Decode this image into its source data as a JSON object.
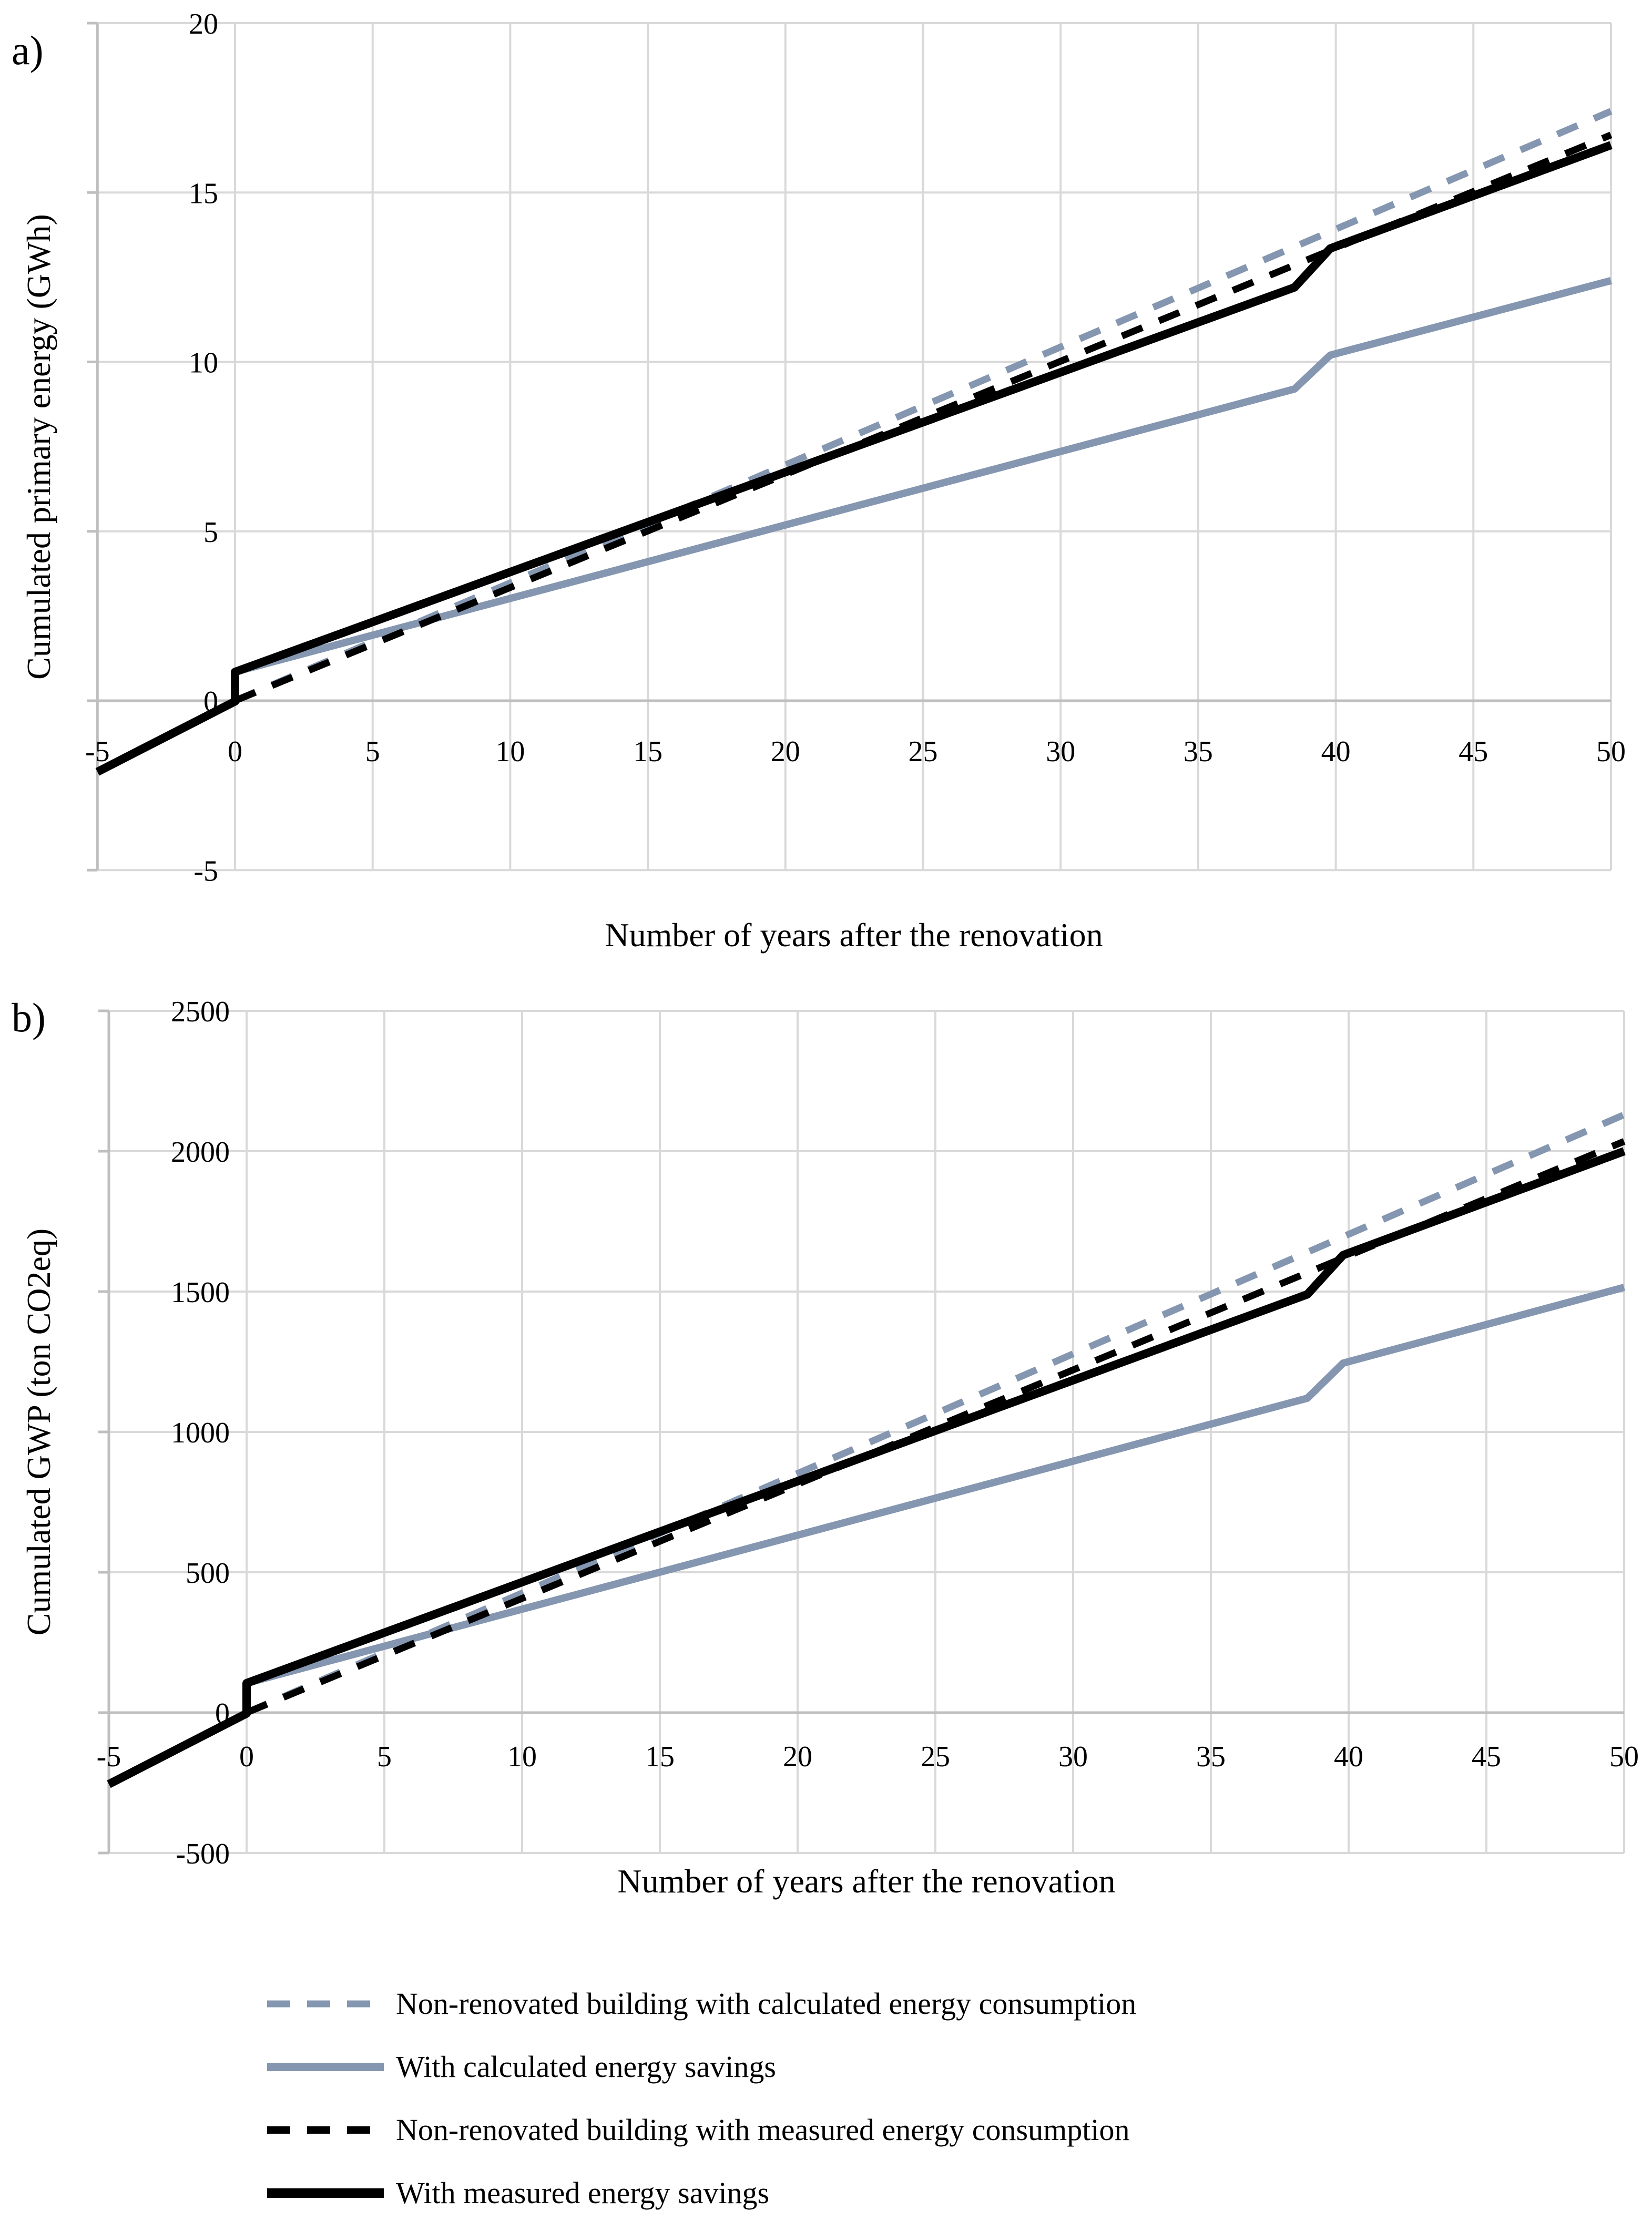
{
  "page": {
    "panel_a_label": "a)",
    "panel_b_label": "b)"
  },
  "colors": {
    "blue": "#8496B0",
    "black": "#000000",
    "gridline": "#D9D9D9",
    "axis": "#BFBFBF",
    "text": "#000000"
  },
  "legend": {
    "items": [
      {
        "label": "Non-renovated building with calculated energy consumption",
        "color": "blue",
        "dash": true,
        "weight": 13
      },
      {
        "label": "With calculated energy savings",
        "color": "blue",
        "dash": false,
        "weight": 16
      },
      {
        "label": "Non-renovated building with measured energy consumption",
        "color": "black",
        "dash": true,
        "weight": 14
      },
      {
        "label": "With measured energy savings",
        "color": "black",
        "dash": false,
        "weight": 18
      }
    ]
  },
  "chart_data": [
    {
      "id": "a",
      "type": "line",
      "title": "",
      "xlabel": "Number of years after the renovation",
      "ylabel": "Cumulated primary energy (GWh)",
      "xlim": [
        -5,
        50
      ],
      "ylim": [
        -5,
        20
      ],
      "xticks": [
        -5,
        0,
        5,
        10,
        15,
        20,
        25,
        30,
        35,
        40,
        45,
        50
      ],
      "yticks": [
        20,
        15,
        10,
        5,
        0,
        -5
      ],
      "grid": true,
      "legend_position": "below-figure",
      "series": [
        {
          "name": "Non-renovated building with calculated energy consumption",
          "color": "blue",
          "dash": true,
          "width": 13,
          "points": [
            [
              0,
              0
            ],
            [
              50,
              17.4
            ]
          ]
        },
        {
          "name": "With calculated energy savings",
          "color": "blue",
          "dash": false,
          "width": 14,
          "points": [
            [
              -5,
              -2.1
            ],
            [
              0,
              -0.02
            ],
            [
              0,
              0.85
            ],
            [
              38.5,
              9.2
            ],
            [
              39.8,
              10.2
            ],
            [
              50,
              12.4
            ]
          ]
        },
        {
          "name": "Non-renovated building with measured energy consumption",
          "color": "black",
          "dash": true,
          "width": 13,
          "points": [
            [
              0,
              0
            ],
            [
              50,
              16.7
            ]
          ]
        },
        {
          "name": "With measured energy savings",
          "color": "black",
          "dash": false,
          "width": 16,
          "points": [
            [
              -5,
              -2.1
            ],
            [
              0,
              -0.02
            ],
            [
              0,
              0.85
            ],
            [
              38.5,
              12.2
            ],
            [
              39.8,
              13.35
            ],
            [
              50,
              16.4
            ]
          ]
        }
      ]
    },
    {
      "id": "b",
      "type": "line",
      "title": "",
      "xlabel": "Number of years after the renovation",
      "ylabel": "Cumulated GWP (ton CO2eq)",
      "xlim": [
        -5,
        50
      ],
      "ylim": [
        -500,
        2500
      ],
      "xticks": [
        -5,
        0,
        5,
        10,
        15,
        20,
        25,
        30,
        35,
        40,
        45,
        50
      ],
      "yticks": [
        2500,
        2000,
        1500,
        1000,
        500,
        0,
        -500
      ],
      "grid": true,
      "legend_position": "below-figure",
      "series": [
        {
          "name": "Non-renovated building with calculated energy consumption",
          "color": "blue",
          "dash": true,
          "width": 13,
          "points": [
            [
              0,
              0
            ],
            [
              50,
              2130
            ]
          ]
        },
        {
          "name": "With calculated energy savings",
          "color": "blue",
          "dash": false,
          "width": 14,
          "points": [
            [
              -5,
              -255
            ],
            [
              0,
              -3
            ],
            [
              0,
              105
            ],
            [
              38.5,
              1120
            ],
            [
              39.8,
              1245
            ],
            [
              50,
              1515
            ]
          ]
        },
        {
          "name": "Non-renovated building with measured energy consumption",
          "color": "black",
          "dash": true,
          "width": 13,
          "points": [
            [
              0,
              0
            ],
            [
              50,
              2035
            ]
          ]
        },
        {
          "name": "With measured energy savings",
          "color": "black",
          "dash": false,
          "width": 16,
          "points": [
            [
              -5,
              -255
            ],
            [
              0,
              -3
            ],
            [
              0,
              105
            ],
            [
              38.5,
              1490
            ],
            [
              39.8,
              1630
            ],
            [
              50,
              2000
            ]
          ]
        }
      ]
    }
  ]
}
